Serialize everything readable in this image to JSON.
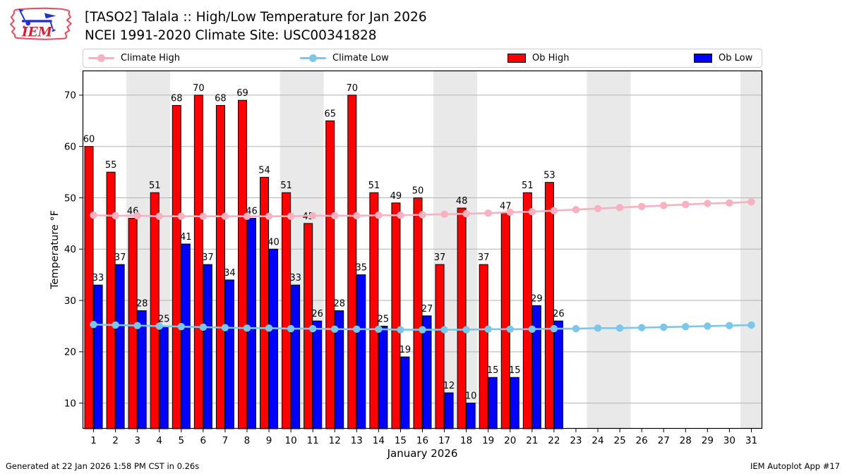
{
  "header": {
    "title_line1": "[TASO2] Talala :: High/Low Temperature for Jan 2026",
    "title_line2": "NCEI 1991-2020 Climate Site: USC00341828",
    "logo_text": "IEM"
  },
  "legend": {
    "items": [
      {
        "label": "Climate High",
        "type": "line",
        "color": "#f8b1c0"
      },
      {
        "label": "Climate Low",
        "type": "line",
        "color": "#7cc7e8"
      },
      {
        "label": "Ob High",
        "type": "patch",
        "color": "#ff0000"
      },
      {
        "label": "Ob Low",
        "type": "patch",
        "color": "#0000ff"
      }
    ]
  },
  "chart_data": {
    "type": "bar",
    "title": "[TASO2] Talala :: High/Low Temperature for Jan 2026",
    "subtitle": "NCEI 1991-2020 Climate Site: USC00341828",
    "xlabel": "January 2026",
    "ylabel": "Temperature °F",
    "xlim": [
      0.5,
      31.5
    ],
    "ylim": [
      5,
      74.8
    ],
    "yticks": [
      10,
      20,
      30,
      40,
      50,
      60,
      70
    ],
    "xticks": [
      1,
      2,
      3,
      4,
      5,
      6,
      7,
      8,
      9,
      10,
      11,
      12,
      13,
      14,
      15,
      16,
      17,
      18,
      19,
      20,
      21,
      22,
      23,
      24,
      25,
      26,
      27,
      28,
      29,
      30,
      31
    ],
    "grid": true,
    "weekend_days": [
      3,
      4,
      10,
      11,
      17,
      18,
      24,
      25,
      31
    ],
    "colors": {
      "ob_high": "#ff0000",
      "ob_low": "#0000ff",
      "climate_high": "#f8b1c0",
      "climate_low": "#7cc7e8",
      "bar_edge": "#000000",
      "gridline": "#b3b3b3",
      "weekend_band": "#e9e9e9"
    },
    "series": [
      {
        "name": "Ob High",
        "type": "bar",
        "color": "#ff0000",
        "x": [
          1,
          2,
          3,
          4,
          5,
          6,
          7,
          8,
          9,
          10,
          11,
          12,
          13,
          14,
          15,
          16,
          17,
          18,
          19,
          20,
          21,
          22
        ],
        "values": [
          60,
          55,
          46,
          51,
          68,
          70,
          68,
          69,
          54,
          51,
          45,
          65,
          70,
          51,
          49,
          50,
          37,
          48,
          37,
          47,
          51,
          53
        ]
      },
      {
        "name": "Ob Low",
        "type": "bar",
        "color": "#0000ff",
        "x": [
          1,
          2,
          3,
          4,
          5,
          6,
          7,
          8,
          9,
          10,
          11,
          12,
          13,
          14,
          15,
          16,
          17,
          18,
          19,
          20,
          21,
          22
        ],
        "values": [
          33,
          37,
          28,
          25,
          41,
          37,
          34,
          46,
          40,
          33,
          26,
          28,
          35,
          25,
          19,
          27,
          12,
          10,
          15,
          15,
          29,
          26
        ]
      },
      {
        "name": "Climate High",
        "type": "line",
        "color": "#f8b1c0",
        "x": [
          1,
          2,
          3,
          4,
          5,
          6,
          7,
          8,
          9,
          10,
          11,
          12,
          13,
          14,
          15,
          16,
          17,
          18,
          19,
          20,
          21,
          22,
          23,
          24,
          25,
          26,
          27,
          28,
          29,
          30,
          31
        ],
        "values": [
          46.6,
          46.5,
          46.5,
          46.4,
          46.4,
          46.4,
          46.4,
          46.4,
          46.4,
          46.4,
          46.5,
          46.5,
          46.5,
          46.6,
          46.6,
          46.7,
          46.8,
          46.9,
          47.0,
          47.2,
          47.3,
          47.5,
          47.7,
          47.9,
          48.1,
          48.3,
          48.5,
          48.7,
          48.9,
          49.0,
          49.2
        ]
      },
      {
        "name": "Climate Low",
        "type": "line",
        "color": "#7cc7e8",
        "x": [
          1,
          2,
          3,
          4,
          5,
          6,
          7,
          8,
          9,
          10,
          11,
          12,
          13,
          14,
          15,
          16,
          17,
          18,
          19,
          20,
          21,
          22,
          23,
          24,
          25,
          26,
          27,
          28,
          29,
          30,
          31
        ],
        "values": [
          25.3,
          25.2,
          25.1,
          25.0,
          24.9,
          24.8,
          24.7,
          24.6,
          24.6,
          24.5,
          24.5,
          24.4,
          24.4,
          24.4,
          24.3,
          24.3,
          24.3,
          24.3,
          24.4,
          24.4,
          24.4,
          24.5,
          24.5,
          24.6,
          24.6,
          24.7,
          24.8,
          24.9,
          25.0,
          25.1,
          25.2
        ]
      }
    ]
  },
  "footer": {
    "left": "Generated at 22 Jan 2026 1:58 PM CST in 0.26s",
    "right": "IEM Autoplot App #17"
  }
}
